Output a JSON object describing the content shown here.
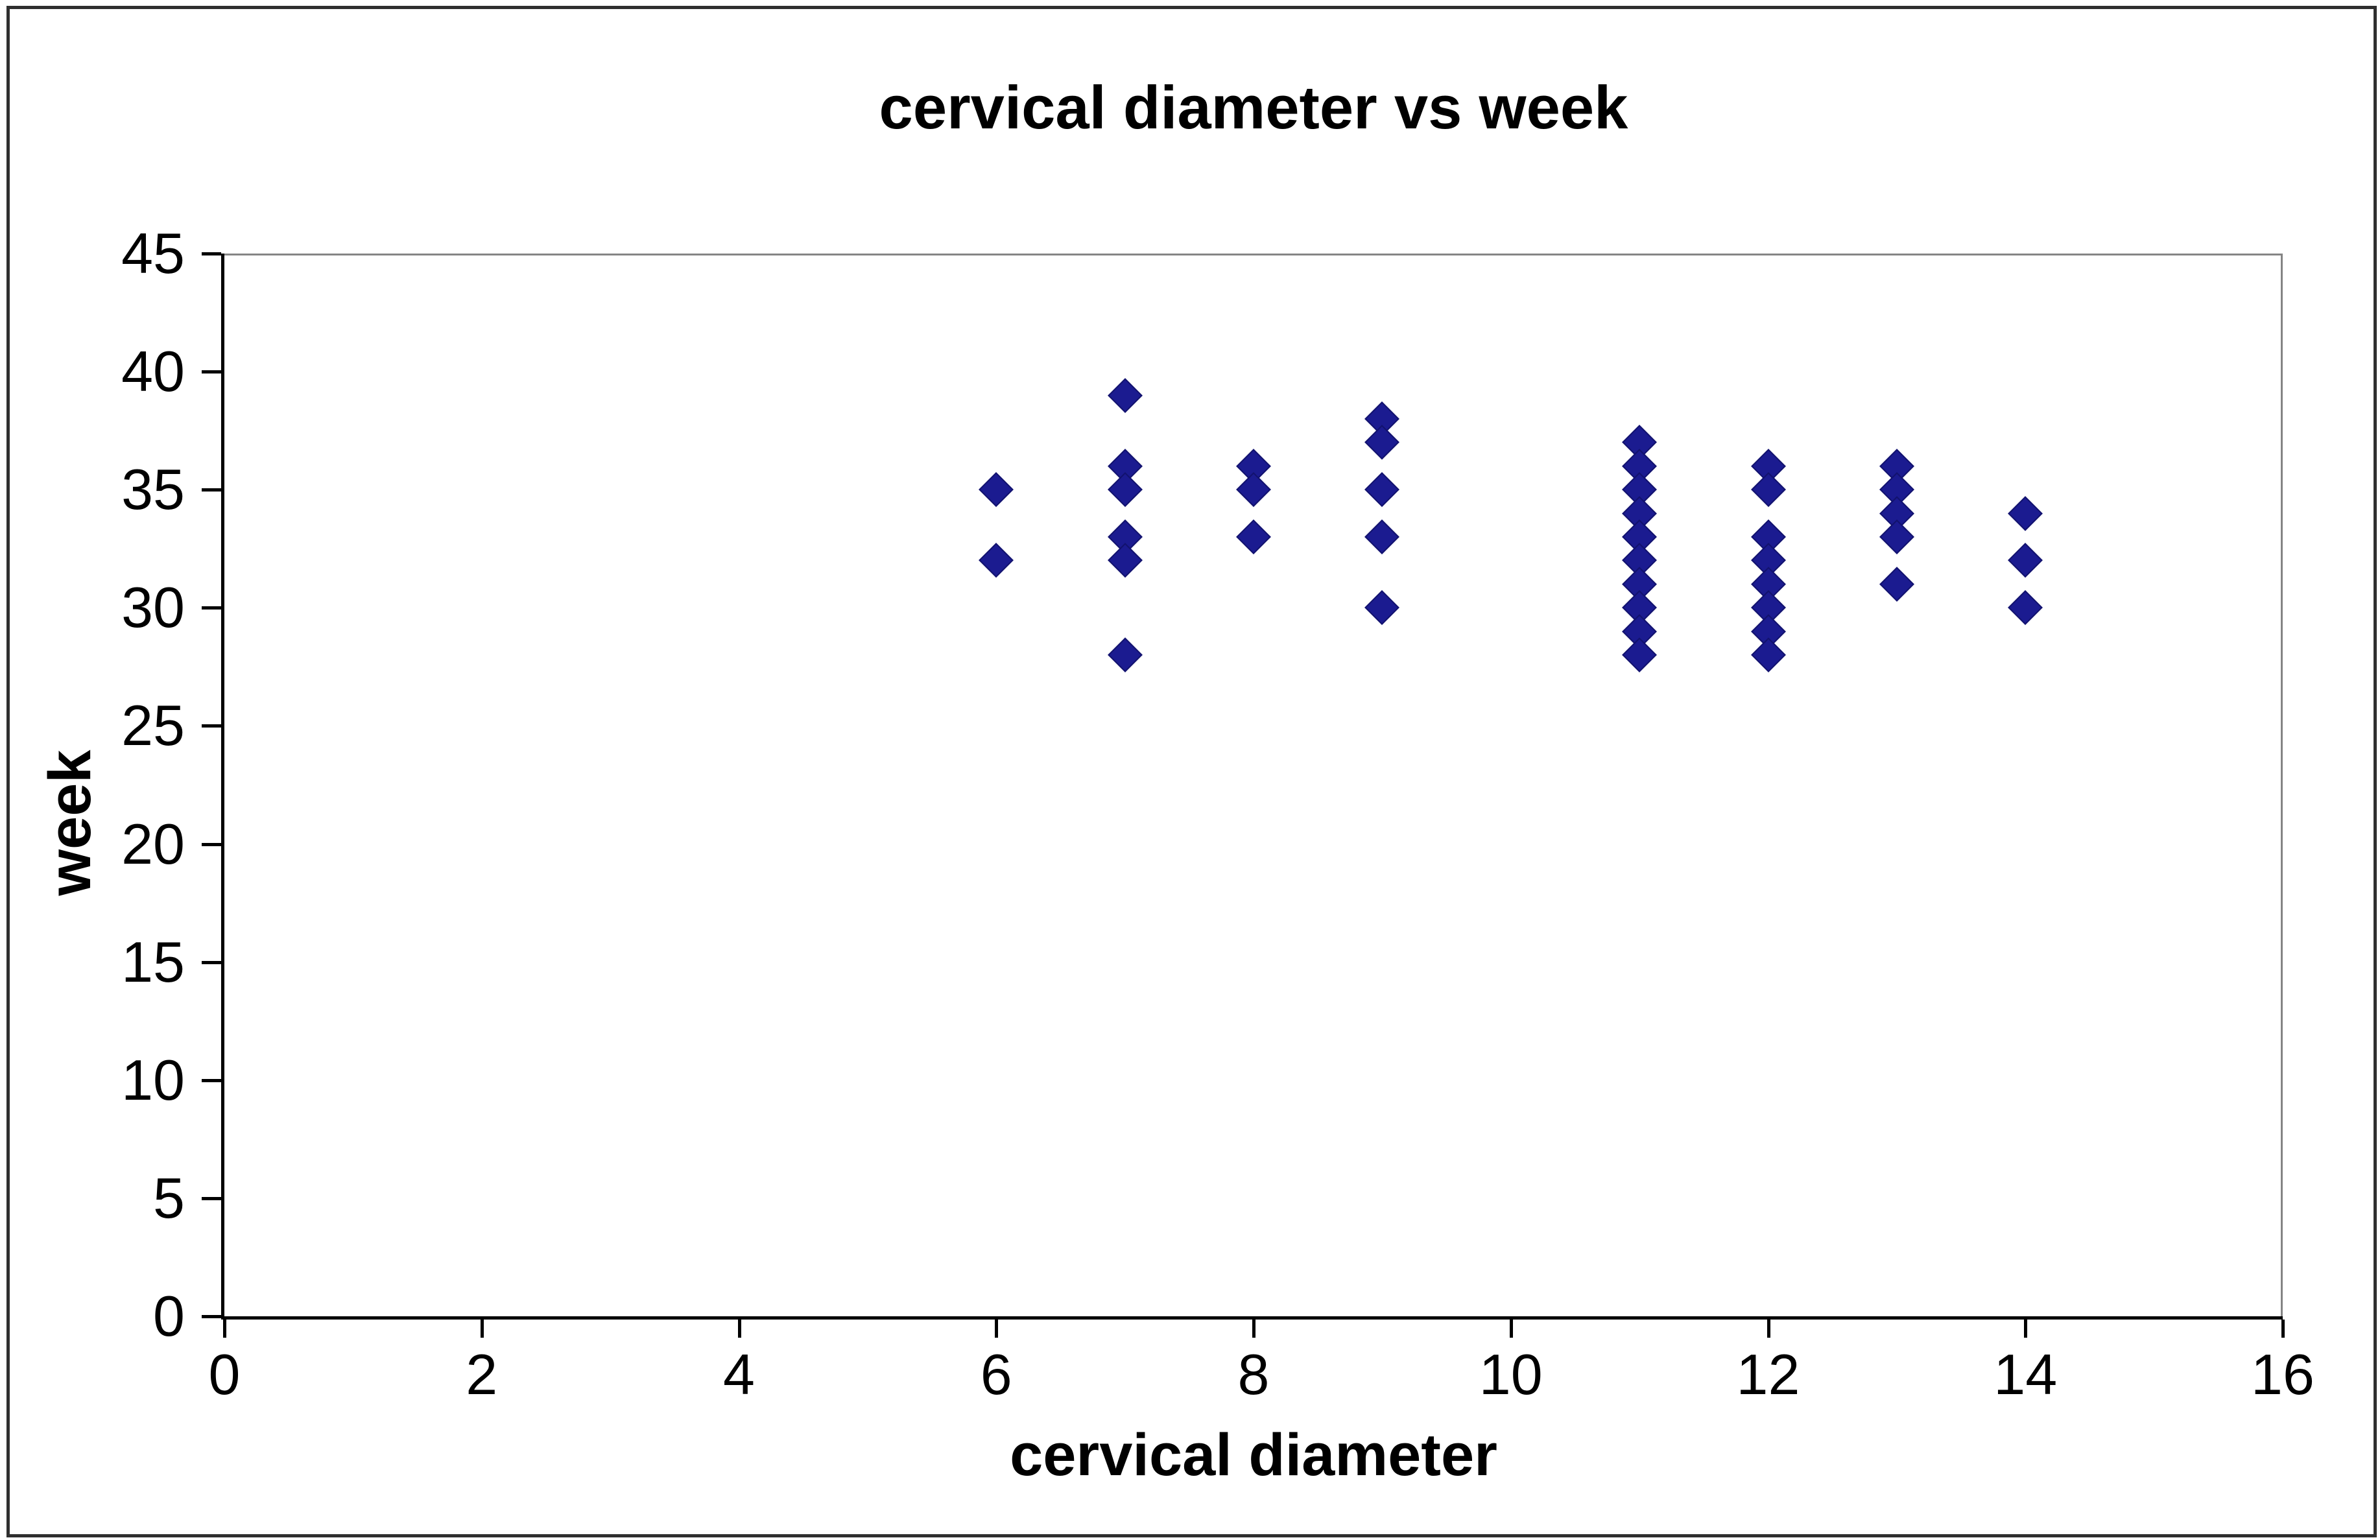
{
  "chart_data": {
    "type": "scatter",
    "title": "cervical diameter vs week",
    "xlabel": "cervical diameter",
    "ylabel": "week",
    "xlim": [
      0,
      16
    ],
    "ylim": [
      0,
      45
    ],
    "x_ticks": [
      0,
      2,
      4,
      6,
      8,
      10,
      12,
      14,
      16
    ],
    "y_ticks": [
      0,
      5,
      10,
      15,
      20,
      25,
      30,
      35,
      40,
      45
    ],
    "grid": false,
    "legend_position": "none",
    "marker": "diamond",
    "series": [
      {
        "name": "week",
        "points": [
          [
            6,
            35
          ],
          [
            6,
            32
          ],
          [
            7,
            39
          ],
          [
            7,
            36
          ],
          [
            7,
            35
          ],
          [
            7,
            33
          ],
          [
            7,
            32
          ],
          [
            7,
            28
          ],
          [
            8,
            36
          ],
          [
            8,
            35
          ],
          [
            8,
            33
          ],
          [
            9,
            38
          ],
          [
            9,
            37
          ],
          [
            9,
            35
          ],
          [
            9,
            33
          ],
          [
            9,
            30
          ],
          [
            11,
            37
          ],
          [
            11,
            36
          ],
          [
            11,
            35
          ],
          [
            11,
            34
          ],
          [
            11,
            33
          ],
          [
            11,
            32
          ],
          [
            11,
            31
          ],
          [
            11,
            30
          ],
          [
            11,
            29
          ],
          [
            11,
            28
          ],
          [
            12,
            36
          ],
          [
            12,
            35
          ],
          [
            12,
            33
          ],
          [
            12,
            32
          ],
          [
            12,
            31
          ],
          [
            12,
            30
          ],
          [
            12,
            29
          ],
          [
            12,
            28
          ],
          [
            13,
            36
          ],
          [
            13,
            35
          ],
          [
            13,
            34
          ],
          [
            13,
            33
          ],
          [
            13,
            31
          ],
          [
            14,
            34
          ],
          [
            14,
            32
          ],
          [
            14,
            30
          ]
        ]
      }
    ]
  },
  "colors": {
    "marker_fill": "#1b1b90",
    "marker_edge": "#12126e",
    "axis": "#000000",
    "plot_border": "#858585",
    "figure_border": "#2f2f2f",
    "background": "#ffffff",
    "text": "#000000"
  }
}
